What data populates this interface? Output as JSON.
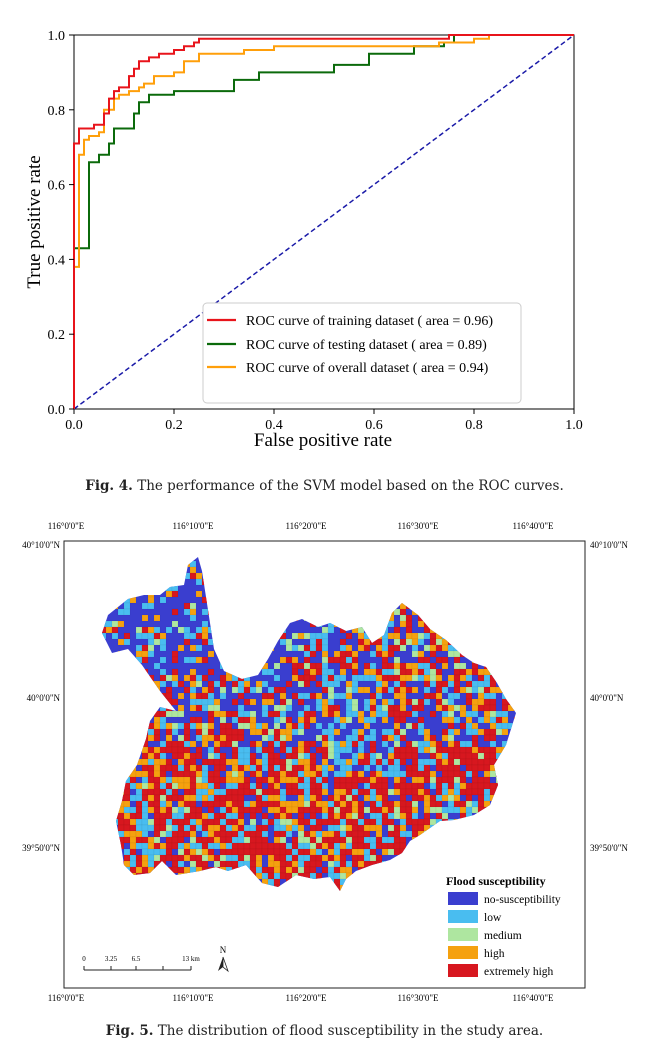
{
  "figure4": {
    "caption_label": "Fig. 4.",
    "caption_text": "The performance of the SVM model based on the ROC curves.",
    "chart_data": {
      "type": "line",
      "xlabel": "False positive rate",
      "ylabel": "True positive rate",
      "xlim": [
        0.0,
        1.0
      ],
      "ylim": [
        0.0,
        1.0
      ],
      "xticks": [
        "0.0",
        "0.2",
        "0.4",
        "0.6",
        "0.8",
        "1.0"
      ],
      "yticks": [
        "0.0",
        "0.2",
        "0.4",
        "0.6",
        "0.8",
        "1.0"
      ],
      "grid": false,
      "legend_position": "bottom-right",
      "series": [
        {
          "name": "ROC curve of training dataset ( area = 0.96)",
          "color": "#e8141b",
          "points": [
            [
              0,
              0
            ],
            [
              0,
              0.71
            ],
            [
              0.01,
              0.71
            ],
            [
              0.01,
              0.75
            ],
            [
              0.04,
              0.75
            ],
            [
              0.04,
              0.76
            ],
            [
              0.06,
              0.76
            ],
            [
              0.06,
              0.79
            ],
            [
              0.07,
              0.79
            ],
            [
              0.07,
              0.83
            ],
            [
              0.08,
              0.83
            ],
            [
              0.08,
              0.85
            ],
            [
              0.09,
              0.85
            ],
            [
              0.09,
              0.86
            ],
            [
              0.11,
              0.86
            ],
            [
              0.11,
              0.89
            ],
            [
              0.12,
              0.89
            ],
            [
              0.12,
              0.91
            ],
            [
              0.13,
              0.91
            ],
            [
              0.13,
              0.93
            ],
            [
              0.15,
              0.93
            ],
            [
              0.15,
              0.94
            ],
            [
              0.17,
              0.94
            ],
            [
              0.17,
              0.95
            ],
            [
              0.2,
              0.95
            ],
            [
              0.2,
              0.96
            ],
            [
              0.22,
              0.96
            ],
            [
              0.22,
              0.97
            ],
            [
              0.24,
              0.97
            ],
            [
              0.24,
              0.98
            ],
            [
              0.25,
              0.98
            ],
            [
              0.25,
              0.99
            ],
            [
              0.75,
              0.99
            ],
            [
              0.75,
              1.0
            ],
            [
              1.0,
              1.0
            ]
          ]
        },
        {
          "name": "ROC curve of testing dataset ( area = 0.89)",
          "color": "#0b6a0b",
          "points": [
            [
              0,
              0
            ],
            [
              0,
              0.43
            ],
            [
              0.03,
              0.43
            ],
            [
              0.03,
              0.66
            ],
            [
              0.05,
              0.66
            ],
            [
              0.05,
              0.68
            ],
            [
              0.07,
              0.68
            ],
            [
              0.07,
              0.71
            ],
            [
              0.08,
              0.71
            ],
            [
              0.08,
              0.75
            ],
            [
              0.12,
              0.75
            ],
            [
              0.12,
              0.79
            ],
            [
              0.13,
              0.79
            ],
            [
              0.13,
              0.82
            ],
            [
              0.15,
              0.82
            ],
            [
              0.15,
              0.84
            ],
            [
              0.2,
              0.84
            ],
            [
              0.2,
              0.85
            ],
            [
              0.32,
              0.85
            ],
            [
              0.32,
              0.88
            ],
            [
              0.37,
              0.88
            ],
            [
              0.37,
              0.9
            ],
            [
              0.52,
              0.9
            ],
            [
              0.52,
              0.92
            ],
            [
              0.59,
              0.92
            ],
            [
              0.59,
              0.95
            ],
            [
              0.68,
              0.95
            ],
            [
              0.68,
              0.97
            ],
            [
              0.74,
              0.97
            ],
            [
              0.74,
              0.98
            ],
            [
              0.76,
              0.98
            ],
            [
              0.76,
              1.0
            ],
            [
              1.0,
              1.0
            ]
          ]
        },
        {
          "name": "ROC curve of overall dataset ( area = 0.94)",
          "color": "#ff9f0a",
          "points": [
            [
              0,
              0
            ],
            [
              0,
              0.38
            ],
            [
              0.01,
              0.38
            ],
            [
              0.01,
              0.68
            ],
            [
              0.02,
              0.68
            ],
            [
              0.02,
              0.72
            ],
            [
              0.03,
              0.72
            ],
            [
              0.03,
              0.73
            ],
            [
              0.05,
              0.73
            ],
            [
              0.05,
              0.74
            ],
            [
              0.06,
              0.74
            ],
            [
              0.06,
              0.8
            ],
            [
              0.08,
              0.8
            ],
            [
              0.08,
              0.83
            ],
            [
              0.09,
              0.83
            ],
            [
              0.09,
              0.84
            ],
            [
              0.11,
              0.84
            ],
            [
              0.11,
              0.85
            ],
            [
              0.13,
              0.85
            ],
            [
              0.13,
              0.86
            ],
            [
              0.14,
              0.86
            ],
            [
              0.14,
              0.87
            ],
            [
              0.16,
              0.87
            ],
            [
              0.16,
              0.89
            ],
            [
              0.2,
              0.89
            ],
            [
              0.2,
              0.9
            ],
            [
              0.22,
              0.9
            ],
            [
              0.22,
              0.93
            ],
            [
              0.25,
              0.93
            ],
            [
              0.25,
              0.95
            ],
            [
              0.34,
              0.95
            ],
            [
              0.34,
              0.96
            ],
            [
              0.4,
              0.96
            ],
            [
              0.4,
              0.97
            ],
            [
              0.73,
              0.97
            ],
            [
              0.73,
              0.98
            ],
            [
              0.8,
              0.98
            ],
            [
              0.8,
              0.99
            ],
            [
              0.83,
              0.99
            ],
            [
              0.83,
              1.0
            ],
            [
              1.0,
              1.0
            ]
          ]
        }
      ],
      "reference_line": {
        "points": [
          [
            0,
            0
          ],
          [
            1,
            1
          ]
        ],
        "color": "#1a1aa8",
        "style": "dashed"
      }
    }
  },
  "figure5": {
    "caption_label": "Fig. 5.",
    "caption_text": "The distribution of flood susceptibility in the study area.",
    "top_lon_labels": [
      "116°0'0\"E",
      "116°10'0\"E",
      "116°20'0\"E",
      "116°30'0\"E",
      "116°40'0\"E"
    ],
    "bottom_lon_labels": [
      "116°0'0\"E",
      "116°10'0\"E",
      "116°20'0\"E",
      "116°30'0\"E",
      "116°40'0\"E"
    ],
    "left_lat_labels": [
      "40°10'0\"N",
      "40°0'0\"N",
      "39°50'0\"N"
    ],
    "right_lat_labels": [
      "40°10'0\"N",
      "40°0'0\"N",
      "39°50'0\"N"
    ],
    "legend": {
      "title": "Flood susceptibility",
      "classes": [
        {
          "label": "no-susceptibility",
          "color": "#3a3ecf"
        },
        {
          "label": "low",
          "color": "#49bdf0"
        },
        {
          "label": "medium",
          "color": "#aee6a0"
        },
        {
          "label": "high",
          "color": "#f5a10f"
        },
        {
          "label": "extremely high",
          "color": "#d7171f"
        }
      ]
    },
    "scalebar": {
      "ticks": [
        "0",
        "3.25",
        "6.5",
        "",
        "13 km"
      ]
    },
    "north_arrow": {
      "label": "N",
      "icon": "north-arrow-icon"
    }
  }
}
